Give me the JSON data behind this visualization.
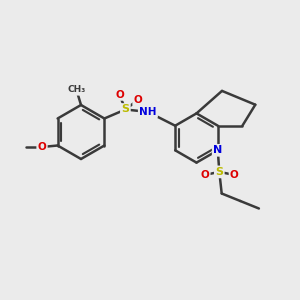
{
  "bg_color": "#ebebeb",
  "bond_color": "#3a3a3a",
  "bond_lw": 1.8,
  "dbo": 0.07,
  "atom_colors": {
    "N": "#0000dd",
    "O": "#dd0000",
    "S": "#bbbb00",
    "C": "#3a3a3a",
    "H": "#888888"
  },
  "figsize": [
    3.0,
    3.0
  ],
  "dpi": 100
}
